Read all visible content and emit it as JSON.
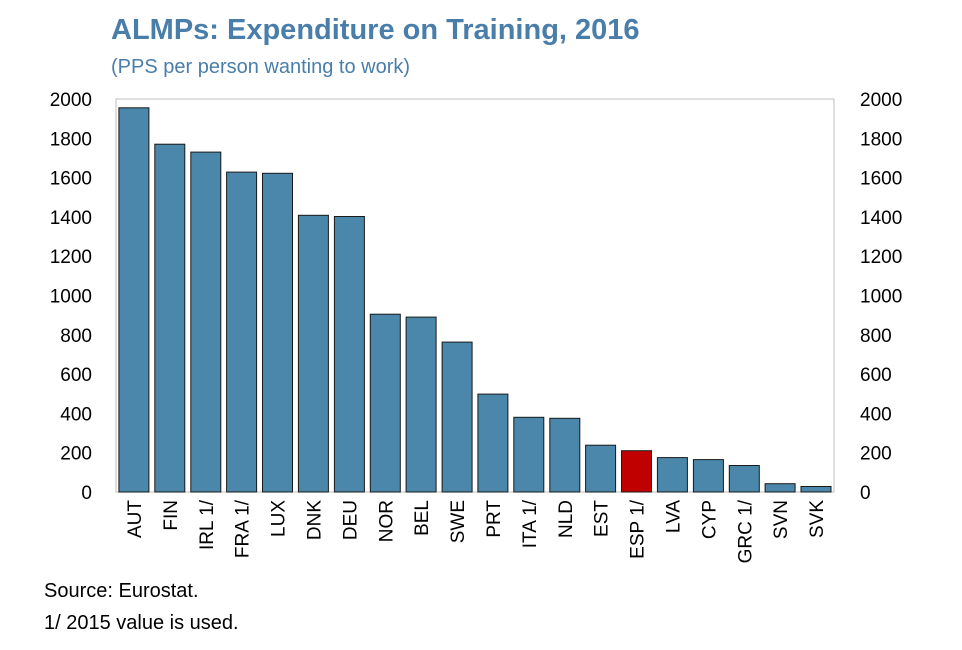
{
  "title": "ALMPs: Expenditure on Training, 2016",
  "subtitle": "(PPS per person wanting to work)",
  "notes": {
    "source": "Source: Eurostat.",
    "footnote": "1/ 2015 value is used."
  },
  "colors": {
    "bar": "#4a87ab",
    "highlight": "#c00000",
    "title": "#4a7eaa"
  },
  "chart_data": {
    "type": "bar",
    "categories": [
      "AUT",
      "FIN",
      "IRL 1/",
      "FRA 1/",
      "LUX",
      "DNK",
      "DEU",
      "NOR",
      "BEL",
      "SWE",
      "PRT",
      "ITA 1/",
      "NLD",
      "EST",
      "ESP 1/",
      "LVA",
      "CYP",
      "GRC 1/",
      "SVN",
      "SVK"
    ],
    "values": [
      1955,
      1770,
      1730,
      1628,
      1622,
      1408,
      1402,
      905,
      890,
      763,
      498,
      380,
      375,
      238,
      210,
      175,
      165,
      135,
      42,
      28
    ],
    "highlight_category": "ESP 1/",
    "ylim": [
      0,
      2000
    ],
    "yticks": [
      0,
      200,
      400,
      600,
      800,
      1000,
      1200,
      1400,
      1600,
      1800,
      2000
    ],
    "right_axis_mirrors_left": true,
    "grid": false,
    "legend": "none"
  }
}
